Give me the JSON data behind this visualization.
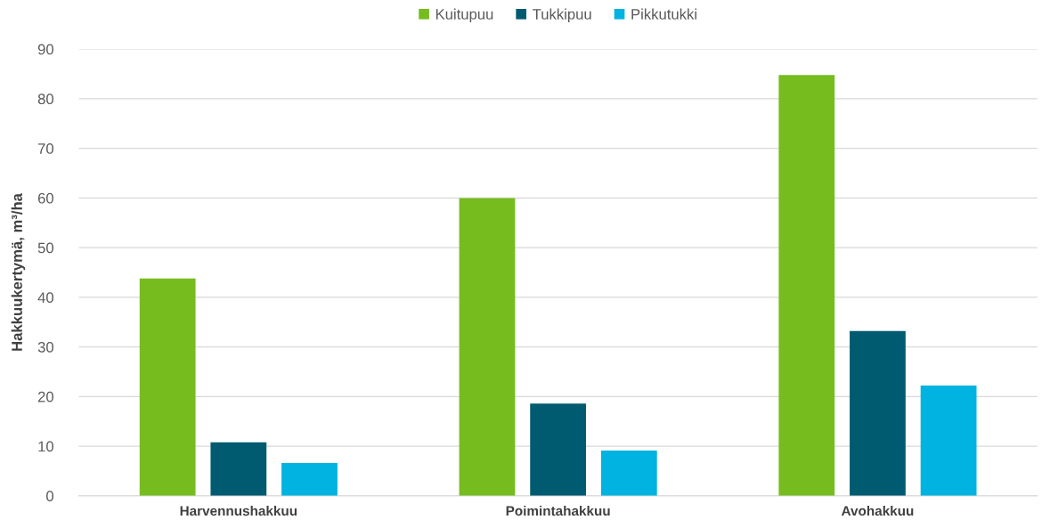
{
  "chart_data": {
    "type": "bar",
    "ylabel": "Hakkuukertymä, m³/ha",
    "categories": [
      "Harvennushakkuu",
      "Poimintahakkuu",
      "Avohakkuu"
    ],
    "series": [
      {
        "name": "Kuitupuu",
        "color": "#77bc1f",
        "values": [
          43.8,
          60.0,
          84.8
        ]
      },
      {
        "name": "Tukkipuu",
        "color": "#005b70",
        "values": [
          10.8,
          18.6,
          33.2
        ]
      },
      {
        "name": "Pikkutukki",
        "color": "#00b3e0",
        "values": [
          6.6,
          9.1,
          22.2
        ]
      }
    ],
    "ylim": [
      0,
      90
    ],
    "yticks": [
      0,
      10,
      20,
      30,
      40,
      50,
      60,
      70,
      80,
      90
    ],
    "grid": "y",
    "legend": "top"
  }
}
